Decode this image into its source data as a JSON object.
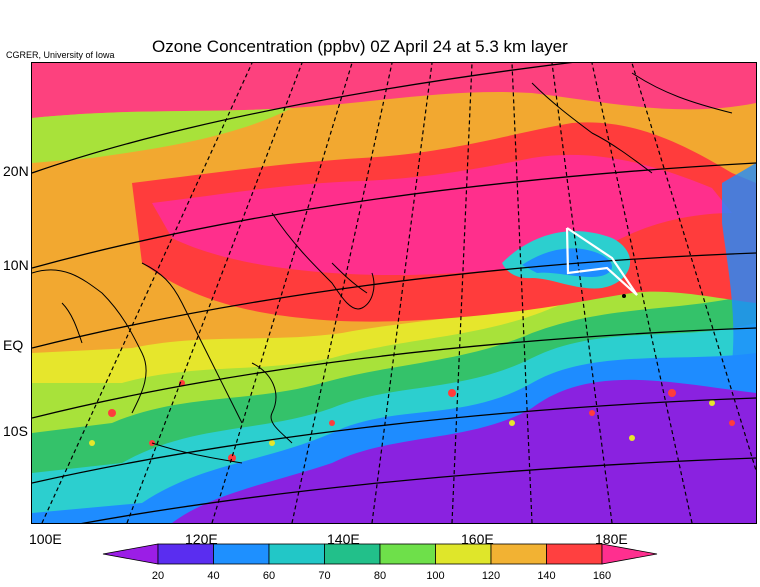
{
  "credit": "CGRER, University of Iowa",
  "title": "Ozone Concentration (ppbv) 0Z April 24 at 5.3 km layer",
  "lat_labels": [
    "20N",
    "10N",
    "EQ",
    "10S"
  ],
  "lon_labels": [
    "100E",
    "120E",
    "140E",
    "160E",
    "180E"
  ],
  "colorbar": {
    "ticks": [
      "20",
      "40",
      "60",
      "70",
      "80",
      "100",
      "120",
      "140",
      "160"
    ],
    "colors": [
      "#9b1ee6",
      "#5a2df0",
      "#1e90ff",
      "#22c7c7",
      "#22c08a",
      "#6ee04a",
      "#dfe62a",
      "#f2b233",
      "#ff4040",
      "#ff2f8f"
    ]
  },
  "map": {
    "background_color": "#7b1fd4",
    "band_colors": {
      "purple": "#8a22e0",
      "blue": "#1e8cff",
      "cyan": "#2ccfcf",
      "green": "#34c26a",
      "yellowgreen": "#a8e23a",
      "yellow": "#e6e62c",
      "orange": "#f2a830",
      "red": "#ff3c3c",
      "magenta": "#ff2f8c"
    },
    "flight_track_color": "#ffffff"
  }
}
